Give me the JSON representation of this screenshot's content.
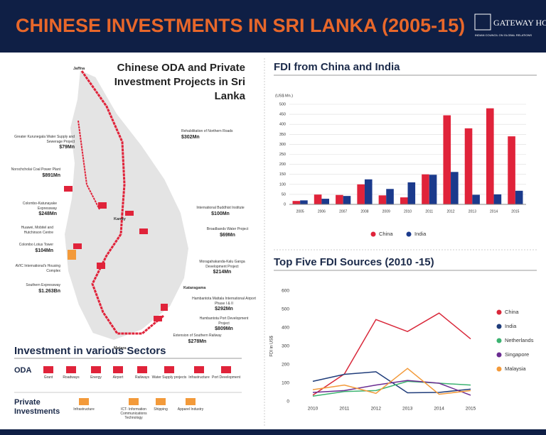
{
  "header": {
    "title": "CHINESE INVESTMENTS IN SRI LANKA (2005-15)",
    "logo": "GATEWAY HOUSE",
    "logo_subtitle": "INDIAN COUNCIL ON GLOBAL RELATIONS"
  },
  "map": {
    "title": "Chinese ODA and Private Investment Projects in Sri Lanka",
    "places": [
      "Jaffna",
      "Kandy",
      "Kataragama",
      "Matara"
    ],
    "projects": [
      {
        "name": "Rehabilitation of Northern Roads",
        "amount": "$302Mn"
      },
      {
        "name": "Greater Kurunegala Water Supply and Sewerage Project",
        "amount": "$79Mn"
      },
      {
        "name": "Norochcholai Coal Power Plant",
        "amount": "$891Mn"
      },
      {
        "name": "Colombo-Katunayake Expressway",
        "amount": "$248Mn"
      },
      {
        "name": "Huawei, Mobitel and Hutchinson Centre"
      },
      {
        "name": "Colombo Lotus Tower",
        "amount": "$104Mn"
      },
      {
        "name": "AVIC International's Housing Complex"
      },
      {
        "name": "Southern Expressway",
        "amount": "$1.263Bn"
      },
      {
        "name": "International Buddhist Institute",
        "amount": "$100Mn"
      },
      {
        "name": "Broadbands Water Project",
        "amount": "$69Mn"
      },
      {
        "name": "Moragahakanda-Kalu Ganga Development Project",
        "amount": "$214Mn"
      },
      {
        "name": "Hambantota Mattala International Airport Phase I & II",
        "amount": "$292Mn"
      },
      {
        "name": "Hambantota Port Development Project",
        "amount": "$809Mn"
      },
      {
        "name": "Extension of Southern Railway",
        "amount": "$278Mn"
      }
    ]
  },
  "sectors": {
    "title": "Investment in various Sectors",
    "groups": [
      {
        "name": "ODA",
        "items": [
          "Grant",
          "Roadways",
          "Energy",
          "Airport",
          "Railways",
          "Water Supply projects",
          "Infrastructure",
          "Port Development"
        ]
      },
      {
        "name": "Private Investments",
        "items": [
          "Infrastructure",
          "ICT- Information Communications Technology",
          "Shipping",
          "Apparel Industry"
        ]
      }
    ]
  },
  "chart_data": [
    {
      "type": "bar",
      "title": "FDI from China and India",
      "y_label": "(US$ Mn.)",
      "categories": [
        "2005",
        "2006",
        "2007",
        "2008",
        "2009",
        "2010",
        "2011",
        "2012",
        "2013",
        "2014",
        "2015"
      ],
      "series": [
        {
          "name": "China",
          "color": "#e0233a",
          "values": [
            17,
            49,
            47,
            100,
            45,
            35,
            150,
            445,
            380,
            480,
            340
          ]
        },
        {
          "name": "India",
          "color": "#1b3a8c",
          "values": [
            20,
            28,
            42,
            125,
            77,
            110,
            148,
            162,
            48,
            50,
            68
          ]
        }
      ],
      "ylim": [
        0,
        500
      ],
      "yticks": [
        0,
        50,
        100,
        150,
        200,
        250,
        300,
        350,
        400,
        450,
        500
      ],
      "grid": true,
      "legend": "bottom"
    },
    {
      "type": "line",
      "title": "Top Five FDI Sources (2010 -15)",
      "y_label": "FDI in US$",
      "categories": [
        "2010",
        "2011",
        "2012",
        "2013",
        "2014",
        "2015"
      ],
      "series": [
        {
          "name": "China",
          "color": "#d9283a",
          "values": [
            35,
            150,
            445,
            380,
            480,
            340
          ]
        },
        {
          "name": "India",
          "color": "#1f3c7a",
          "values": [
            110,
            148,
            162,
            48,
            50,
            68
          ]
        },
        {
          "name": "Netherlands",
          "color": "#3cb371",
          "values": [
            30,
            55,
            60,
            110,
            100,
            90
          ]
        },
        {
          "name": "Singapore",
          "color": "#6a2c91",
          "values": [
            50,
            60,
            90,
            115,
            100,
            35
          ]
        },
        {
          "name": "Malaysia",
          "color": "#f39a3a",
          "values": [
            65,
            90,
            45,
            180,
            40,
            60
          ]
        }
      ],
      "ylim": [
        0,
        600
      ],
      "yticks": [
        0,
        100,
        200,
        300,
        400,
        500,
        600
      ],
      "grid": false,
      "legend": "right"
    }
  ]
}
